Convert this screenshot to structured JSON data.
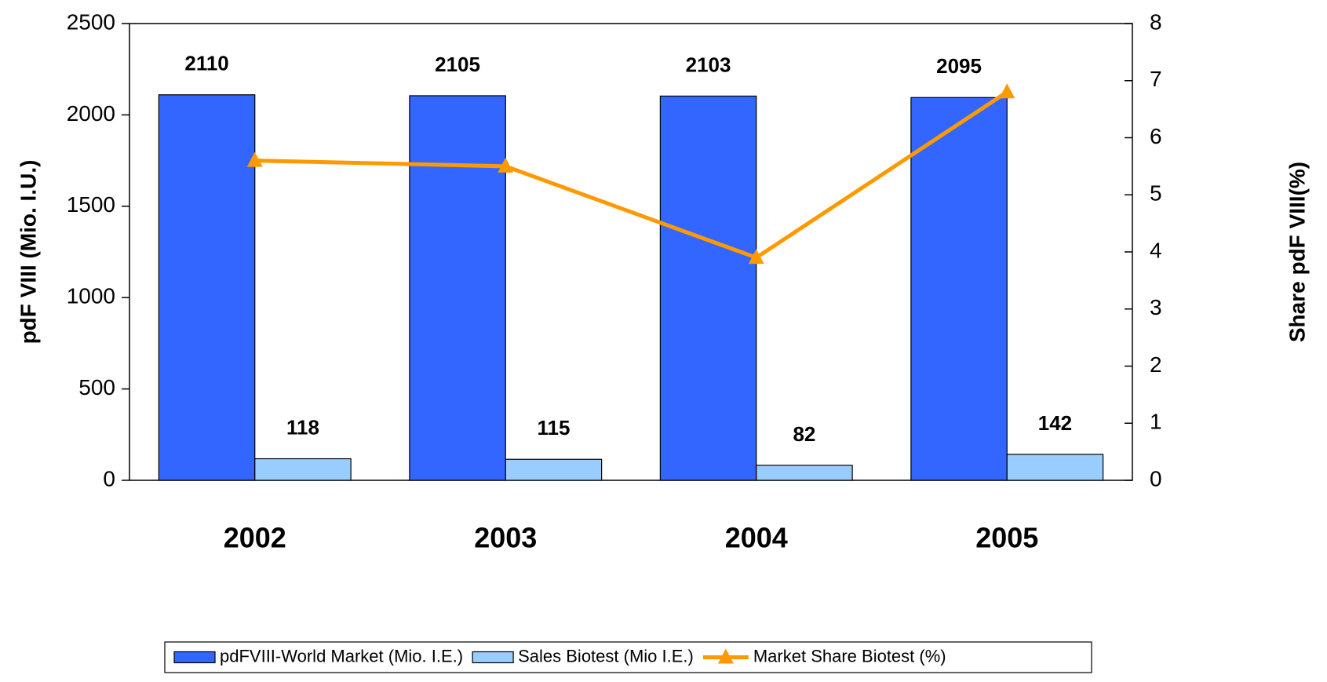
{
  "chart_data": {
    "type": "bar",
    "categories": [
      "2002",
      "2003",
      "2004",
      "2005"
    ],
    "series": [
      {
        "name": "pdFVIII-World Market (Mio. I.E.)",
        "color": "#3366ff",
        "values": [
          2110,
          2105,
          2103,
          2095
        ]
      },
      {
        "name": "Sales Biotest (Mio I.E.)",
        "color": "#99ccff",
        "values": [
          118,
          115,
          82,
          142
        ]
      },
      {
        "name": "Market Share Biotest (%)",
        "color": "#ff9900",
        "type": "line",
        "axis": "y2",
        "values": [
          5.6,
          5.5,
          3.9,
          6.8
        ]
      }
    ],
    "ylabel": "pdF VIII (Mio. I.U.)",
    "y2label": "Share pdF VIII(%)",
    "ylim": [
      0,
      2500
    ],
    "yticks": [
      0,
      500,
      1000,
      1500,
      2000,
      2500
    ],
    "y2lim": [
      0,
      8
    ],
    "y2ticks": [
      0,
      1,
      2,
      3,
      4,
      5,
      6,
      7,
      8
    ],
    "legend": "bottom"
  }
}
